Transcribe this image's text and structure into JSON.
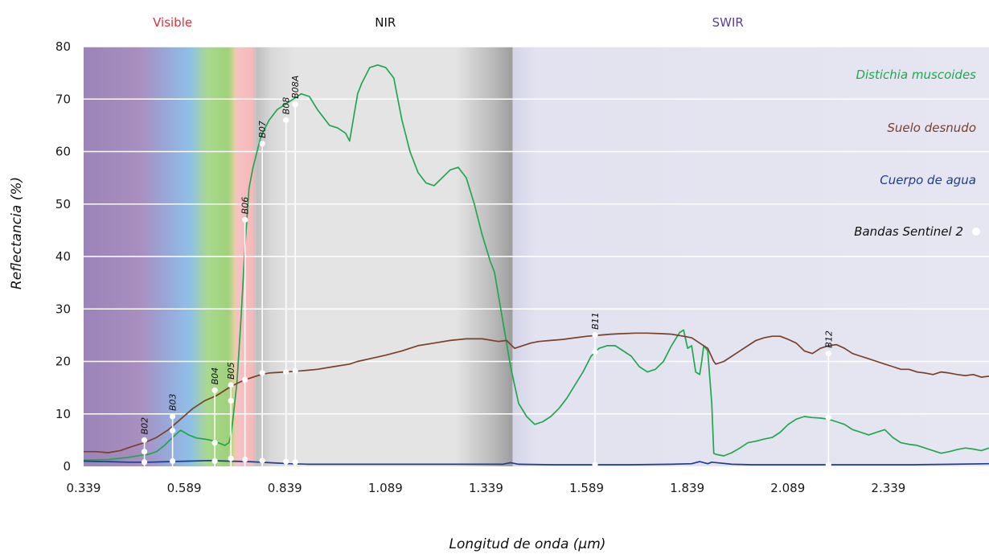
{
  "chart_data": {
    "type": "line",
    "xlabel": "Longitud de onda (µm)",
    "ylabel": "Reflectancia (%)",
    "xlim": [
      0.339,
      2.589
    ],
    "ylim": [
      0,
      80
    ],
    "x_ticks": [
      0.339,
      0.589,
      0.839,
      1.089,
      1.339,
      1.589,
      1.839,
      2.089,
      2.339
    ],
    "x_tick_labels": [
      "0.339",
      "0.589",
      "0.839",
      "1.089",
      "1.339",
      "1.589",
      "1.839",
      "2.089",
      "2.339"
    ],
    "y_ticks": [
      0,
      10,
      20,
      30,
      40,
      50,
      60,
      70,
      80
    ],
    "y_tick_labels": [
      "0",
      "10",
      "20",
      "30",
      "40",
      "50",
      "60",
      "70",
      "80"
    ],
    "grid": "horizontal",
    "regions": [
      {
        "label": "Visible",
        "color": "#e0303a",
        "x_center": 0.56
      },
      {
        "label": "NIR",
        "color": "#111111",
        "x_center": 1.089
      },
      {
        "label": "SWIR",
        "color": "#5a3f9a",
        "x_center": 1.94
      }
    ],
    "series": [
      {
        "name": "Distichia muscoides",
        "color": "#1fa84e",
        "x": [
          0.339,
          0.4,
          0.45,
          0.48,
          0.5,
          0.52,
          0.54,
          0.56,
          0.58,
          0.6,
          0.62,
          0.64,
          0.66,
          0.67,
          0.68,
          0.69,
          0.7,
          0.705,
          0.71,
          0.72,
          0.73,
          0.74,
          0.75,
          0.76,
          0.78,
          0.8,
          0.82,
          0.84,
          0.86,
          0.88,
          0.9,
          0.92,
          0.95,
          0.97,
          0.99,
          1.0,
          1.02,
          1.03,
          1.05,
          1.07,
          1.09,
          1.11,
          1.12,
          1.13,
          1.15,
          1.17,
          1.19,
          1.21,
          1.23,
          1.25,
          1.27,
          1.29,
          1.31,
          1.33,
          1.35,
          1.36,
          1.38,
          1.4,
          1.42,
          1.44,
          1.46,
          1.48,
          1.5,
          1.52,
          1.54,
          1.56,
          1.58,
          1.6,
          1.62,
          1.64,
          1.66,
          1.68,
          1.7,
          1.72,
          1.74,
          1.76,
          1.78,
          1.8,
          1.82,
          1.83,
          1.84,
          1.85,
          1.86,
          1.87,
          1.875,
          1.88,
          1.89,
          1.9,
          1.905,
          1.91,
          1.93,
          1.95,
          1.97,
          1.99,
          2.01,
          2.03,
          2.05,
          2.07,
          2.09,
          2.11,
          2.13,
          2.15,
          2.17,
          2.19,
          2.21,
          2.23,
          2.25,
          2.27,
          2.29,
          2.31,
          2.33,
          2.35,
          2.37,
          2.39,
          2.41,
          2.43,
          2.45,
          2.47,
          2.49,
          2.51,
          2.53,
          2.55,
          2.57,
          2.589
        ],
        "y": [
          1.2,
          1.3,
          1.7,
          2.1,
          2.3,
          2.8,
          4.0,
          5.5,
          6.9,
          6.0,
          5.4,
          5.2,
          4.9,
          4.6,
          4.3,
          4.0,
          4.5,
          6.0,
          9.0,
          16.0,
          28.0,
          42.0,
          53.0,
          57.0,
          63.0,
          66.0,
          68.0,
          69.0,
          70.0,
          71.0,
          70.5,
          68.0,
          65.0,
          64.5,
          63.5,
          62.0,
          71.0,
          73.0,
          76.0,
          76.5,
          76.0,
          74.0,
          70.0,
          66.0,
          60.0,
          56.0,
          54.0,
          53.5,
          55.0,
          56.5,
          57.0,
          55.0,
          50.0,
          44.0,
          39.0,
          37.0,
          28.0,
          19.0,
          12.0,
          9.5,
          8.0,
          8.5,
          9.5,
          11.0,
          13.0,
          15.5,
          18.0,
          21.0,
          22.5,
          23.0,
          23.0,
          22.0,
          21.0,
          19.0,
          18.0,
          18.5,
          20.0,
          23.0,
          25.5,
          26.0,
          22.5,
          23.0,
          18.0,
          17.5,
          20.0,
          23.0,
          22.0,
          12.0,
          2.5,
          2.3,
          2.0,
          2.6,
          3.5,
          4.5,
          4.8,
          5.2,
          5.5,
          6.5,
          8.0,
          9.0,
          9.5,
          9.3,
          9.2,
          9.0,
          8.5,
          8.0,
          7.0,
          6.5,
          6.0,
          6.5,
          7.0,
          5.5,
          4.5,
          4.2,
          4.0,
          3.5,
          3.0,
          2.5,
          2.8,
          3.2,
          3.5,
          3.3,
          3.0,
          3.5
        ],
        "legend_label": "Distichia muscoides"
      },
      {
        "name": "Suelo desnudo",
        "color": "#7a4028",
        "x": [
          0.339,
          0.37,
          0.4,
          0.43,
          0.46,
          0.49,
          0.52,
          0.55,
          0.58,
          0.61,
          0.64,
          0.67,
          0.7,
          0.72,
          0.74,
          0.76,
          0.78,
          0.8,
          0.84,
          0.88,
          0.92,
          0.96,
          1.0,
          1.02,
          1.05,
          1.09,
          1.13,
          1.17,
          1.21,
          1.25,
          1.29,
          1.33,
          1.37,
          1.39,
          1.41,
          1.43,
          1.45,
          1.47,
          1.5,
          1.53,
          1.56,
          1.59,
          1.62,
          1.65,
          1.68,
          1.71,
          1.74,
          1.77,
          1.8,
          1.83,
          1.85,
          1.87,
          1.89,
          1.905,
          1.91,
          1.93,
          1.95,
          1.97,
          1.99,
          2.01,
          2.03,
          2.05,
          2.07,
          2.09,
          2.11,
          2.13,
          2.15,
          2.17,
          2.19,
          2.21,
          2.23,
          2.25,
          2.27,
          2.29,
          2.31,
          2.33,
          2.35,
          2.37,
          2.39,
          2.41,
          2.43,
          2.45,
          2.47,
          2.49,
          2.51,
          2.53,
          2.55,
          2.57,
          2.589
        ],
        "y": [
          2.8,
          2.8,
          2.6,
          3.0,
          3.8,
          4.5,
          5.5,
          7.0,
          9.0,
          11.0,
          12.5,
          13.5,
          15.0,
          15.8,
          16.5,
          17.0,
          17.5,
          17.8,
          18.0,
          18.2,
          18.5,
          19.0,
          19.5,
          20.0,
          20.5,
          21.2,
          22.0,
          23.0,
          23.5,
          24.0,
          24.3,
          24.3,
          23.8,
          24.0,
          22.5,
          23.0,
          23.5,
          23.8,
          24.0,
          24.2,
          24.5,
          24.8,
          25.0,
          25.2,
          25.3,
          25.4,
          25.4,
          25.3,
          25.2,
          24.8,
          24.5,
          23.5,
          22.5,
          20.0,
          19.5,
          20.0,
          21.0,
          22.0,
          23.0,
          24.0,
          24.5,
          24.8,
          24.8,
          24.2,
          23.5,
          22.0,
          21.5,
          22.5,
          23.0,
          23.2,
          22.5,
          21.5,
          21.0,
          20.5,
          20.0,
          19.5,
          19.0,
          18.5,
          18.5,
          18.0,
          17.8,
          17.5,
          18.0,
          17.8,
          17.5,
          17.3,
          17.5,
          17.0,
          17.2
        ],
        "legend_label": "Suelo desnudo"
      },
      {
        "name": "Cuerpo de agua",
        "color": "#1d3e8c",
        "x": [
          0.339,
          0.4,
          0.45,
          0.5,
          0.55,
          0.6,
          0.65,
          0.7,
          0.75,
          0.8,
          0.85,
          0.9,
          1.0,
          1.1,
          1.2,
          1.3,
          1.38,
          1.4,
          1.42,
          1.5,
          1.6,
          1.7,
          1.8,
          1.85,
          1.87,
          1.89,
          1.9,
          1.95,
          2.0,
          2.1,
          2.2,
          2.3,
          2.4,
          2.5,
          2.589
        ],
        "y": [
          1.0,
          0.9,
          0.8,
          0.8,
          0.9,
          1.0,
          1.1,
          1.0,
          0.9,
          0.7,
          0.5,
          0.4,
          0.4,
          0.4,
          0.4,
          0.4,
          0.4,
          0.7,
          0.4,
          0.3,
          0.3,
          0.3,
          0.4,
          0.5,
          0.9,
          0.5,
          0.8,
          0.4,
          0.3,
          0.3,
          0.3,
          0.3,
          0.3,
          0.4,
          0.5
        ],
        "legend_label": "Cuerpo de agua"
      }
    ],
    "legend": {
      "placement": "top-right",
      "entries": [
        {
          "label": "Distichia muscoides",
          "color": "#1fa84e"
        },
        {
          "label": "Suelo desnudo",
          "color": "#7a4028"
        },
        {
          "label": "Cuerpo de agua",
          "color": "#1d3e8c"
        },
        {
          "label": "Bandas Sentinel 2",
          "color": "#111111",
          "marker_color": "#ffffff"
        }
      ]
    },
    "bands": [
      {
        "label": "B02",
        "x": 0.49,
        "values": [
          5.0,
          2.8,
          0.8
        ]
      },
      {
        "label": "B03",
        "x": 0.56,
        "values": [
          9.5,
          6.8,
          1.0
        ]
      },
      {
        "label": "B04",
        "x": 0.665,
        "values": [
          14.5,
          4.5,
          1.0
        ]
      },
      {
        "label": "B05",
        "x": 0.705,
        "values": [
          15.5,
          12.5,
          1.5
        ]
      },
      {
        "label": "B06",
        "x": 0.74,
        "values": [
          47.0,
          16.5,
          1.3
        ]
      },
      {
        "label": "B07",
        "x": 0.783,
        "values": [
          61.5,
          17.8,
          1.1
        ]
      },
      {
        "label": "B08",
        "x": 0.842,
        "values": [
          66.0,
          18.0,
          0.9
        ]
      },
      {
        "label": "B08A",
        "x": 0.865,
        "values": [
          69.0,
          18.2,
          0.8
        ]
      },
      {
        "label": "B11",
        "x": 1.61,
        "values": [
          25.0,
          21.8,
          0.3
        ]
      },
      {
        "label": "B12",
        "x": 2.19,
        "values": [
          21.5,
          9.3,
          0.3
        ]
      }
    ],
    "band_marker_color": "#ffffff"
  }
}
